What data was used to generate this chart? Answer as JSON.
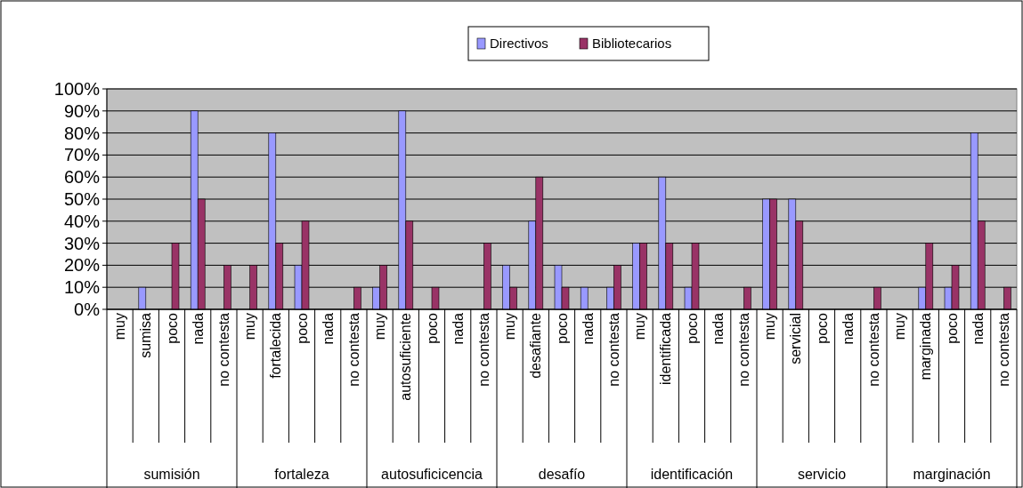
{
  "chart_data": {
    "type": "bar",
    "categories": [
      "muy",
      "sumisa",
      "poco",
      "nada",
      "no contesta",
      "muy",
      "fortalecida",
      "poco",
      "nada",
      "no contesta",
      "muy",
      "autosuficiente",
      "poco",
      "nada",
      "no contesta",
      "muy",
      "desafiante",
      "poco",
      "nada",
      "no contesta",
      "muy",
      "identificada",
      "poco",
      "nada",
      "no contesta",
      "muy",
      "servicial",
      "poco",
      "nada",
      "no contesta",
      "muy",
      "marginada",
      "poco",
      "nada",
      "no contesta"
    ],
    "series": [
      {
        "name": "Directivos",
        "color": "#9999ff",
        "values": [
          0,
          10,
          0,
          90,
          0,
          0,
          80,
          20,
          0,
          0,
          10,
          90,
          0,
          0,
          0,
          20,
          40,
          20,
          10,
          10,
          30,
          60,
          10,
          0,
          0,
          50,
          50,
          0,
          0,
          0,
          0,
          10,
          10,
          80,
          0
        ]
      },
      {
        "name": "Bibliotecarios",
        "color": "#993366",
        "values": [
          0,
          0,
          30,
          50,
          20,
          20,
          30,
          40,
          0,
          10,
          20,
          40,
          10,
          0,
          30,
          10,
          60,
          10,
          0,
          20,
          30,
          30,
          30,
          0,
          10,
          50,
          40,
          0,
          0,
          10,
          0,
          30,
          20,
          40,
          10
        ]
      }
    ],
    "ylim": [
      0,
      100
    ],
    "yticks": [
      {
        "value": 0,
        "label": "0%"
      },
      {
        "value": 10,
        "label": "10%"
      },
      {
        "value": 20,
        "label": "20%"
      },
      {
        "value": 30,
        "label": "30%"
      },
      {
        "value": 40,
        "label": "40%"
      },
      {
        "value": 50,
        "label": "50%"
      },
      {
        "value": 60,
        "label": "60%"
      },
      {
        "value": 70,
        "label": "70%"
      },
      {
        "value": 80,
        "label": "80%"
      },
      {
        "value": 90,
        "label": "90%"
      },
      {
        "value": 100,
        "label": "100%"
      }
    ],
    "grid": "y",
    "legend": "top",
    "annotations": [
      "sumisión",
      "fortaleza",
      "autosuficicencia",
      "desafío",
      "identificación",
      "servicio",
      "marginación"
    ]
  }
}
